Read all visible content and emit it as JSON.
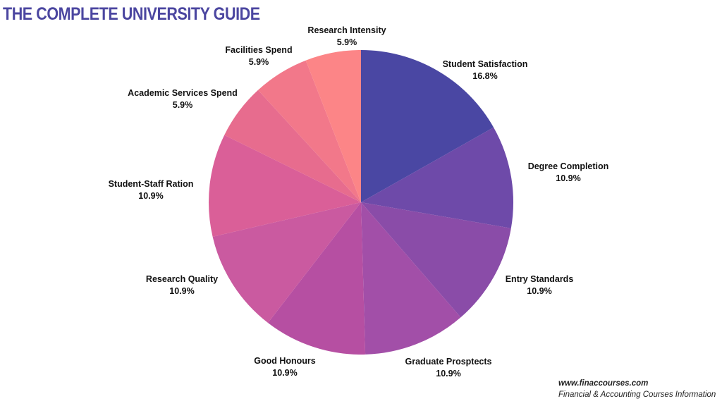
{
  "chart_data": {
    "type": "pie",
    "title": "THE COMPLETE UNIVERSITY GUIDE",
    "start": "top",
    "direction": "clockwise",
    "slices": [
      {
        "label": "Student Satisfaction",
        "value": 16.8,
        "display": "16.8%",
        "color": "#4A47A3"
      },
      {
        "label": "Degree Completion",
        "value": 10.9,
        "display": "10.9%",
        "color": "#6E4AA9"
      },
      {
        "label": "Entry Standards",
        "value": 10.9,
        "display": "10.9%",
        "color": "#8A4CA8"
      },
      {
        "label": "Graduate Prosptects",
        "value": 10.9,
        "display": "10.9%",
        "color": "#A24FA8"
      },
      {
        "label": "Good Honours",
        "value": 10.9,
        "display": "10.9%",
        "color": "#B64FA2"
      },
      {
        "label": "Research Quality",
        "value": 10.9,
        "display": "10.9%",
        "color": "#CA5AA0"
      },
      {
        "label": "Student-Staff Ration",
        "value": 10.9,
        "display": "10.9%",
        "color": "#DA5F98"
      },
      {
        "label": "Academic Services Spend",
        "value": 5.9,
        "display": "5.9%",
        "color": "#E76C8E"
      },
      {
        "label": "Facilities Spend",
        "value": 5.9,
        "display": "5.9%",
        "color": "#F2788A"
      },
      {
        "label": "Research Intensity",
        "value": 5.9,
        "display": "5.9%",
        "color": "#FC8587"
      }
    ]
  },
  "footer": {
    "url": "www.finaccourses.com",
    "tagline": "Financial & Accounting Courses Information"
  }
}
